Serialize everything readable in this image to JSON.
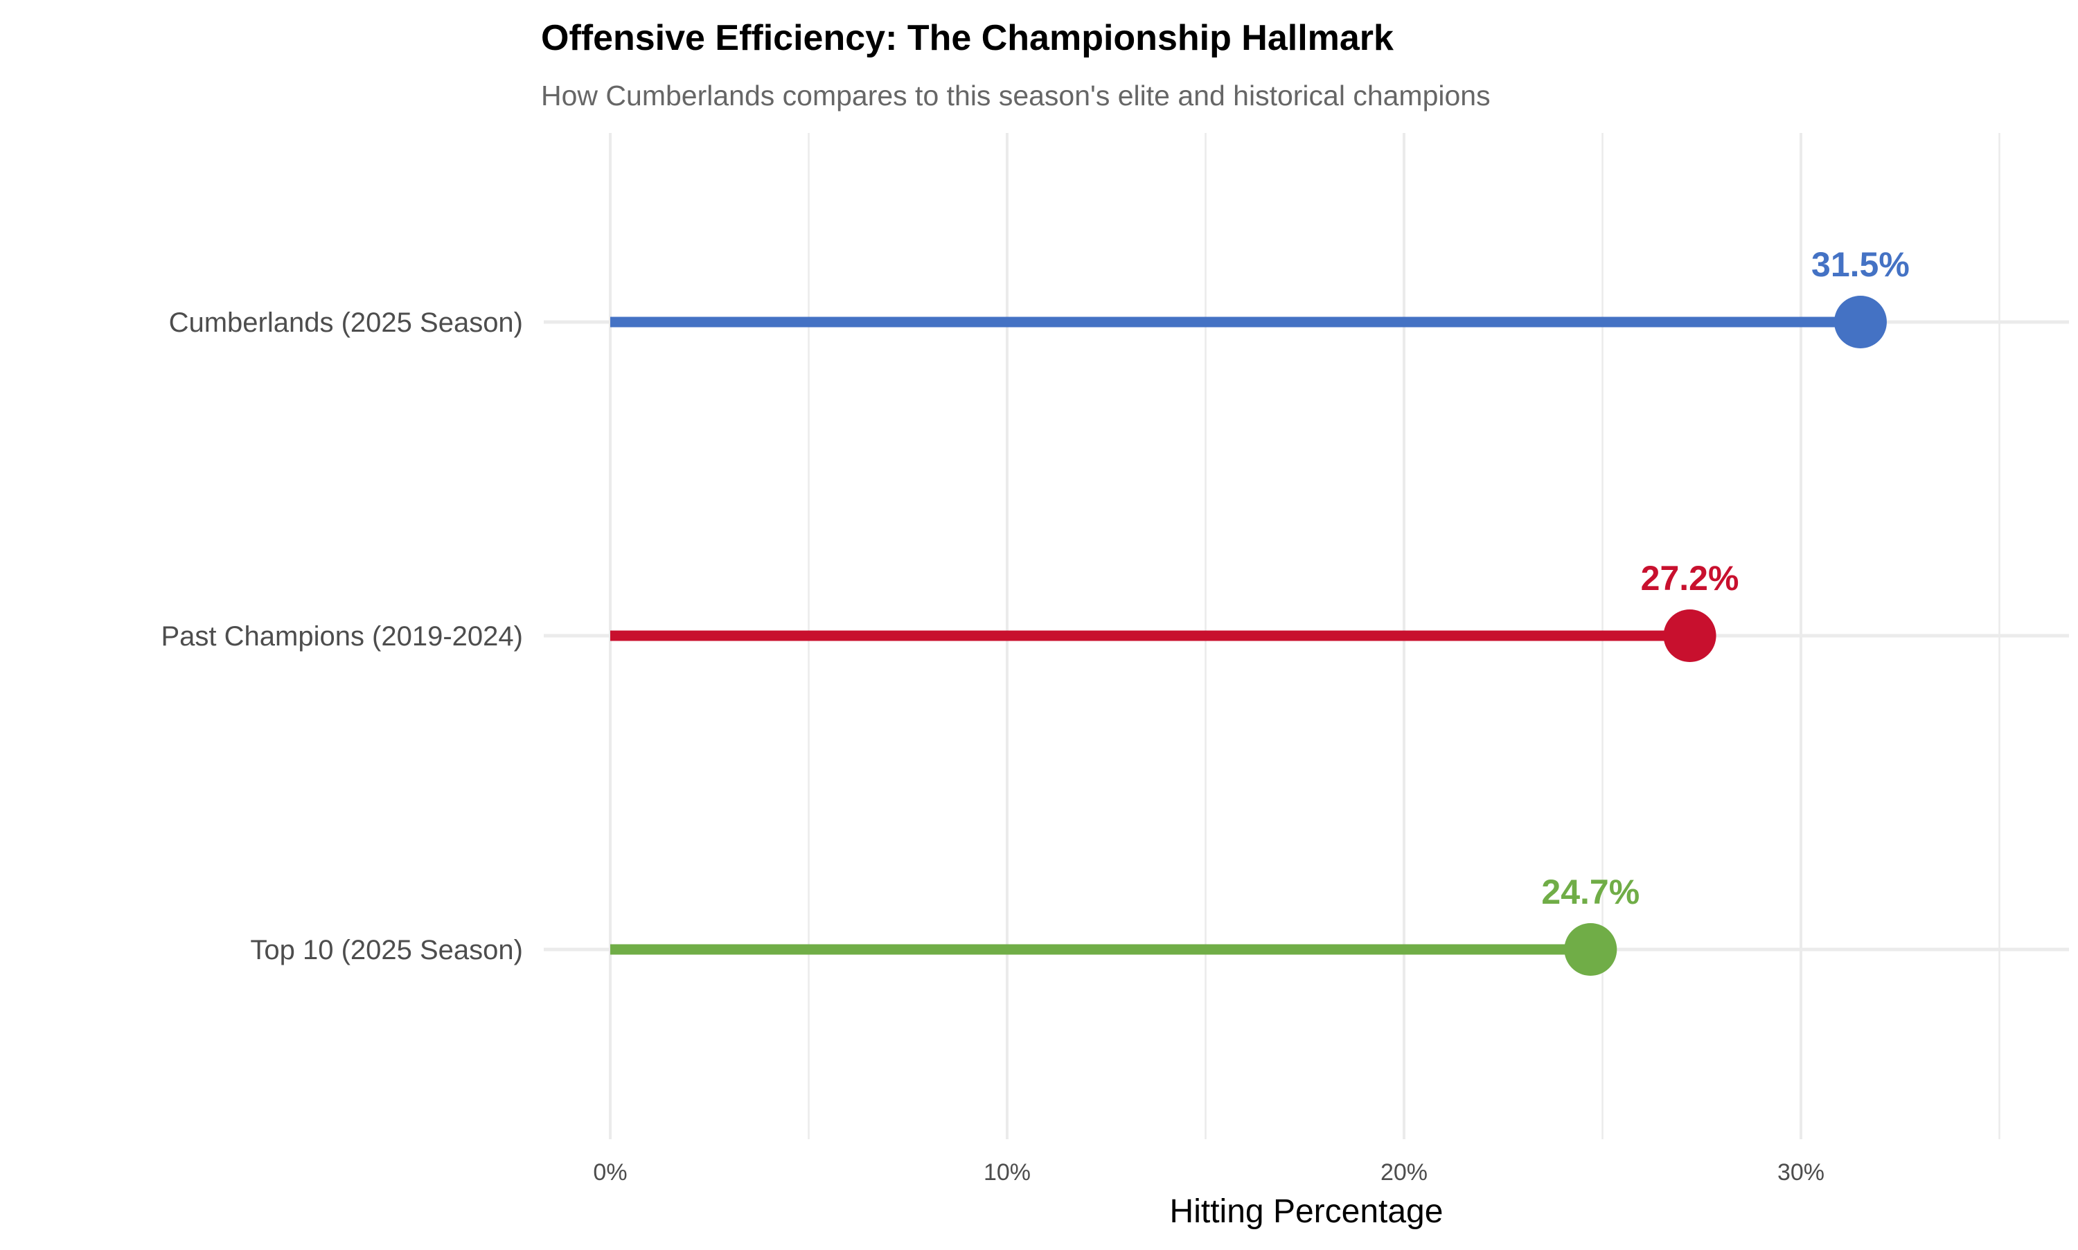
{
  "chart_data": {
    "type": "lollipop",
    "title": "Offensive Efficiency: The Championship Hallmark",
    "subtitle": "How Cumberlands compares to this season's elite and historical champions",
    "xlabel": "Hitting Percentage",
    "ylabel": "",
    "xlim": [
      0,
      36
    ],
    "x_ticks": [
      0,
      10,
      20,
      30
    ],
    "x_tick_labels": [
      "0%",
      "10%",
      "20%",
      "30%"
    ],
    "grid": true,
    "categories": [
      "Cumberlands (2025 Season)",
      "Past Champions (2019-2024)",
      "Top 10 (2025 Season)"
    ],
    "values": [
      31.5,
      27.2,
      24.7
    ],
    "data_labels": [
      "31.5%",
      "27.2%",
      "24.7%"
    ],
    "colors": [
      "#4472C4",
      "#C8102E",
      "#70AD47"
    ]
  }
}
